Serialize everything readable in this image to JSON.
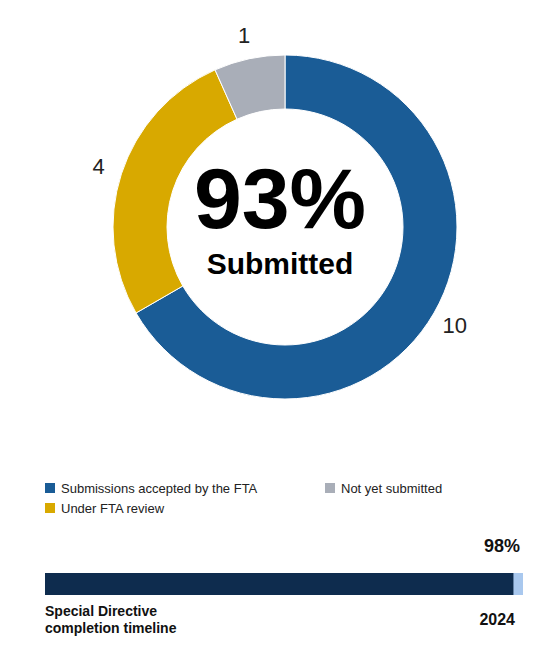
{
  "chart_data": [
    {
      "type": "pie",
      "annotations": [
        "93%",
        "Submitted"
      ],
      "categories": [
        "Submissions accepted by the FTA",
        "Under FTA review",
        "Not yet submitted"
      ],
      "values": [
        10,
        4,
        1
      ],
      "colors": [
        "#1a5c96",
        "#d8a900",
        "#a9aeb8"
      ],
      "data_labels": true,
      "legend": "bottom"
    },
    {
      "type": "bar",
      "orientation": "horizontal",
      "title": "Special Directive completion timeline",
      "categories": [
        "2024"
      ],
      "values": [
        98
      ],
      "value_labels": [
        "98%"
      ],
      "xlim": [
        0,
        100
      ],
      "tick_labels": false,
      "colors": [
        "#0e2c4e",
        "#a9c8ee"
      ],
      "data_labels": true
    }
  ]
}
